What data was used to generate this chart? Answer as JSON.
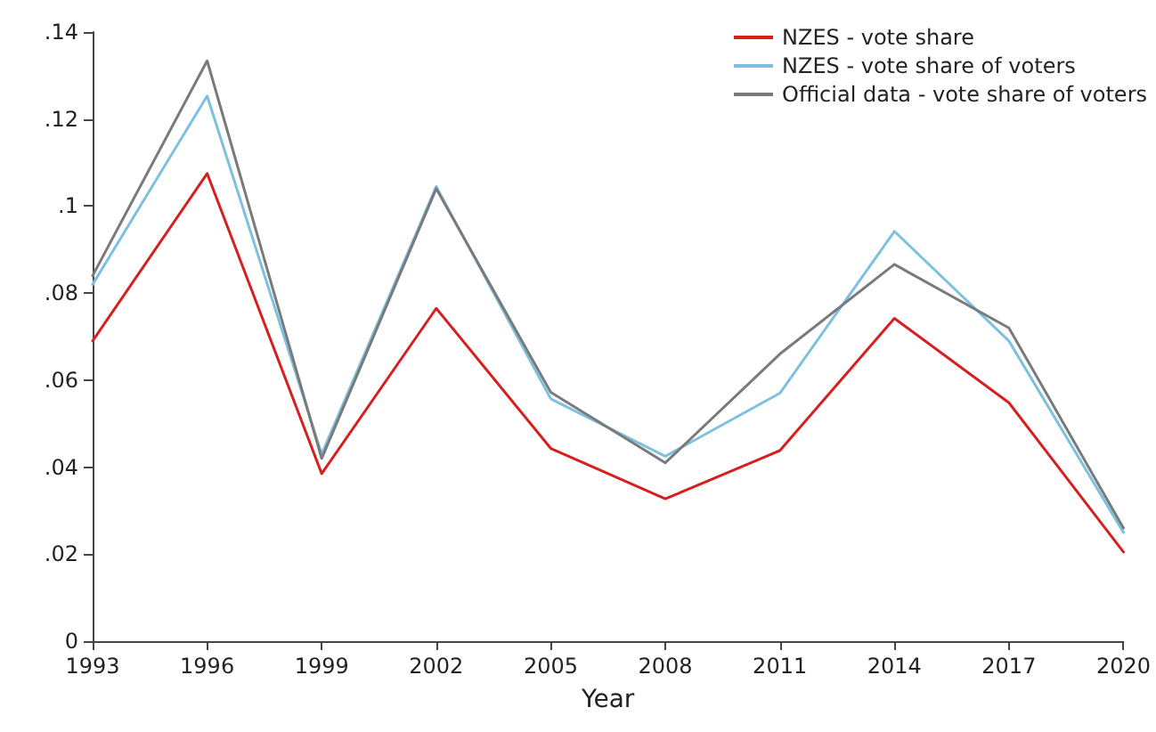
{
  "chart_data": {
    "type": "line",
    "xlabel": "Year",
    "x": [
      1993,
      1996,
      1999,
      2002,
      2005,
      2008,
      2011,
      2014,
      2017,
      2020
    ],
    "series": [
      {
        "name": "NZES - vote share",
        "color": "#d62020",
        "values": [
          0.069,
          0.1075,
          0.0385,
          0.0765,
          0.0443,
          0.0327,
          0.0438,
          0.0742,
          0.0548,
          0.0205
        ]
      },
      {
        "name": "NZES - vote share of voters",
        "color": "#7ec0e0",
        "values": [
          0.082,
          0.1253,
          0.043,
          0.1045,
          0.0557,
          0.0425,
          0.057,
          0.0942,
          0.069,
          0.025
        ]
      },
      {
        "name": "Official data - vote share of voters",
        "color": "#7a7a7a",
        "values": [
          0.084,
          0.1334,
          0.042,
          0.104,
          0.0572,
          0.041,
          0.066,
          0.0866,
          0.072,
          0.026
        ]
      }
    ],
    "xlim": [
      1993,
      2020
    ],
    "xticks": [
      1993,
      1996,
      1999,
      2002,
      2005,
      2008,
      2011,
      2014,
      2017,
      2020
    ],
    "ylim": [
      0,
      0.14
    ],
    "yticks": [
      {
        "value": 0,
        "label": "0"
      },
      {
        "value": 0.02,
        "label": ".02"
      },
      {
        "value": 0.04,
        "label": ".04"
      },
      {
        "value": 0.06,
        "label": ".06"
      },
      {
        "value": 0.08,
        "label": ".08"
      },
      {
        "value": 0.1,
        "label": ".1"
      },
      {
        "value": 0.12,
        "label": ".12"
      },
      {
        "value": 0.14,
        "label": ".14"
      }
    ],
    "grid": false,
    "legend": "top right",
    "marker": "none",
    "line_style": "solid"
  }
}
